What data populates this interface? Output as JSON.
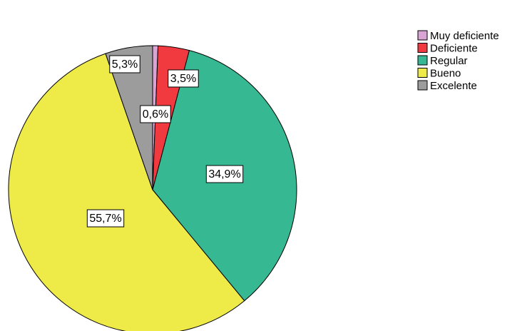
{
  "chart_data": {
    "type": "pie",
    "categories": [
      "Muy deficiente",
      "Deficiente",
      "Regular",
      "Bueno",
      "Excelente"
    ],
    "values": [
      0.6,
      3.5,
      34.9,
      55.7,
      5.3
    ],
    "value_labels": [
      "0,6%",
      "3,5%",
      "34,9%",
      "55,7%",
      "5,3%"
    ],
    "colors": [
      "#d9a3d4",
      "#f03a3f",
      "#36b893",
      "#eeea48",
      "#9c9c9c"
    ],
    "legend": "top-right"
  }
}
